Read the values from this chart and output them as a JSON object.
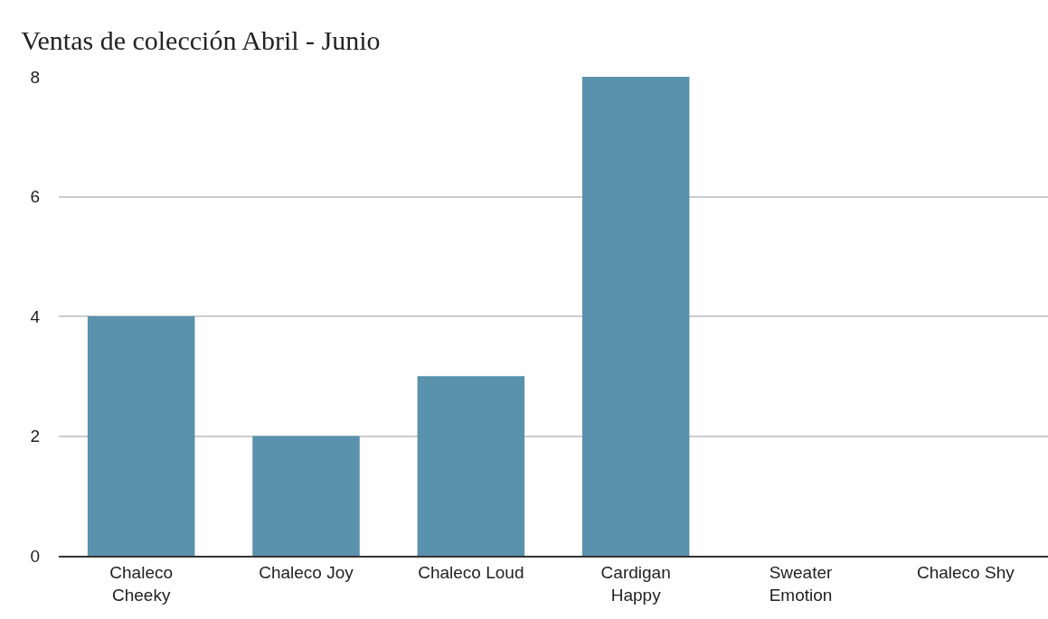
{
  "chart_data": {
    "type": "bar",
    "title": "Ventas de colección Abril - Junio",
    "categories": [
      "Chaleco Cheeky",
      "Chaleco Joy",
      "Chaleco Loud",
      "Cardigan Happy",
      "Sweater Emotion",
      "Chaleco Shy"
    ],
    "values": [
      4,
      2,
      3,
      8,
      0,
      0
    ],
    "color": "#5a91ad",
    "ylim": [
      0,
      8
    ],
    "yticks": [
      0,
      2,
      4,
      6,
      8
    ],
    "grid": "y"
  }
}
